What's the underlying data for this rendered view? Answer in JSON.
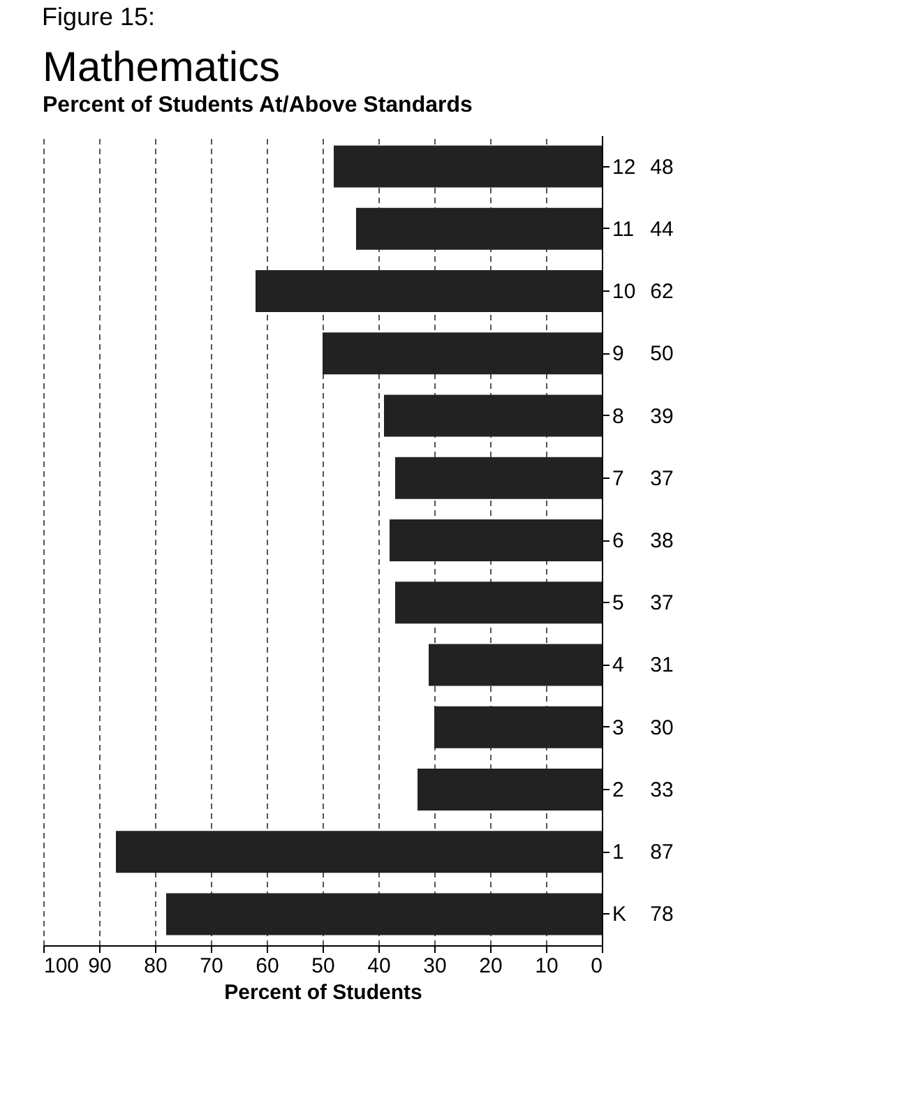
{
  "chart_data": {
    "type": "bar",
    "title": "Mathematics",
    "subtitle": "Percent of Students At/Above Standards",
    "xlabel": "Percent of Students",
    "annotations": [
      "Figure 15:"
    ],
    "orientation": "horizontal",
    "categories": [
      "12",
      "11",
      "10",
      "9",
      "8",
      "7",
      "6",
      "5",
      "4",
      "3",
      "2",
      "1",
      "K"
    ],
    "values": [
      48,
      44,
      62,
      50,
      39,
      37,
      38,
      37,
      31,
      30,
      33,
      87,
      78
    ],
    "color": "#222222",
    "xlim": [
      100,
      0
    ],
    "xticks": [
      0,
      10,
      20,
      30,
      40,
      50,
      60,
      70,
      80,
      90,
      100
    ],
    "grid": "x",
    "data_labels": true
  }
}
